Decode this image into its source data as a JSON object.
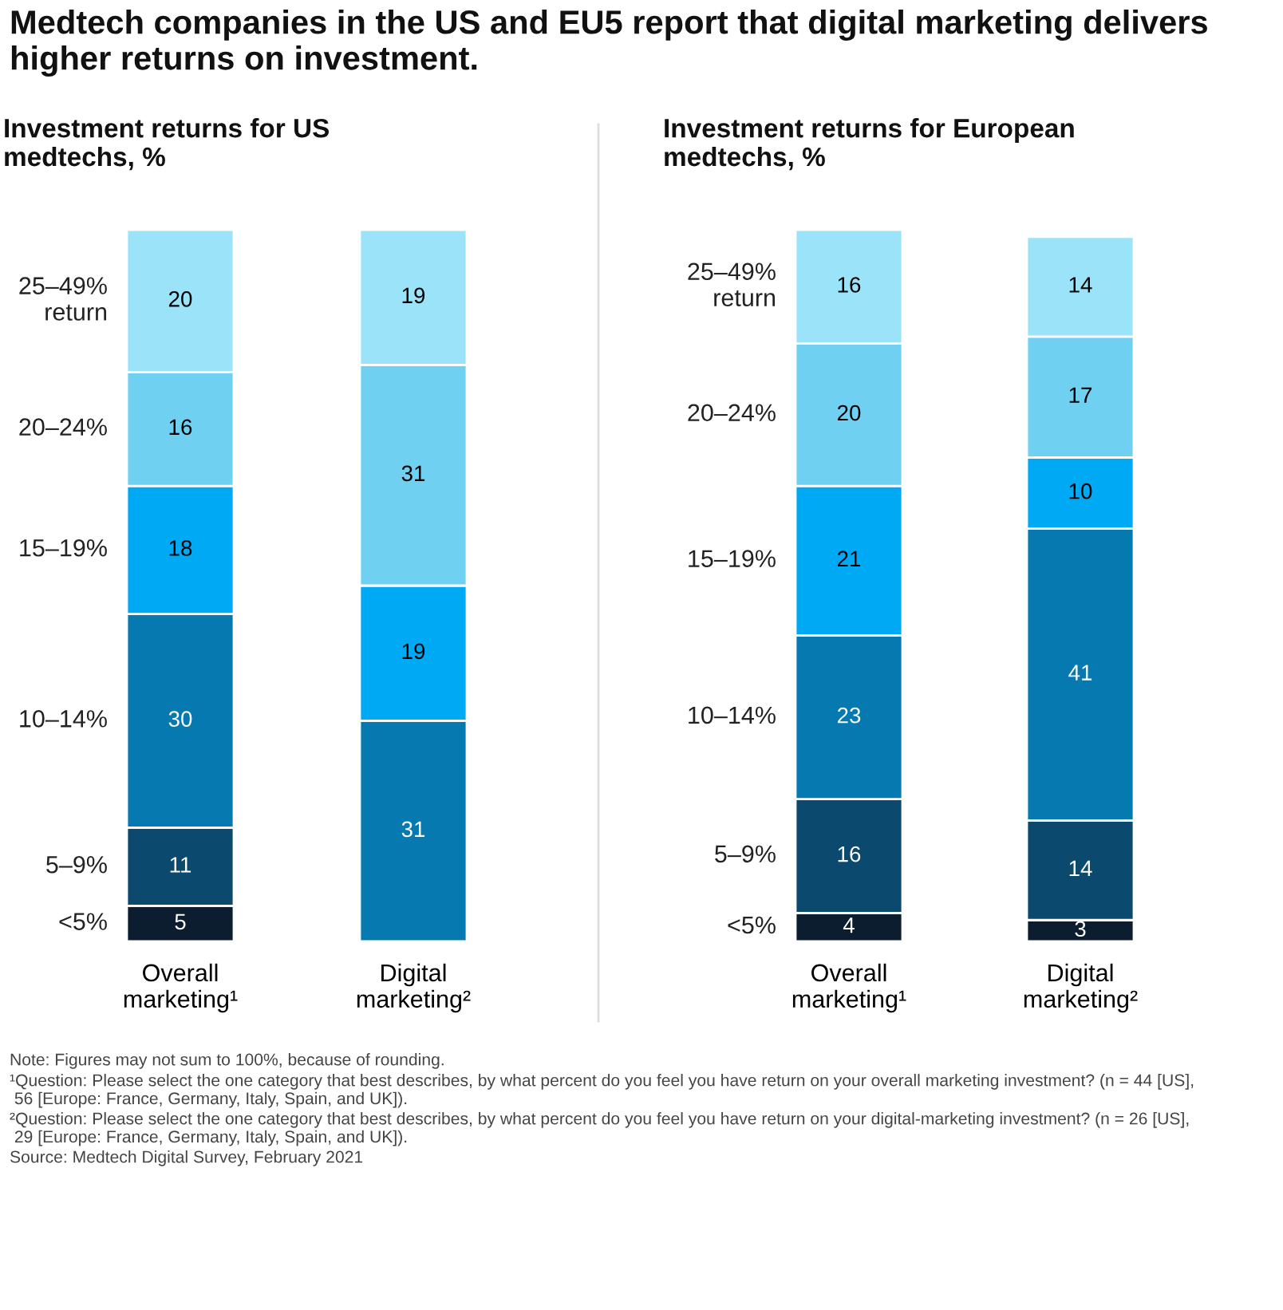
{
  "chart_data": [
    {
      "type": "bar",
      "stacked": true,
      "title": "Medtech companies in the US and EU5 report that digital marketing delivers\nhigher returns on investment.",
      "subtitle": "Investment returns for US\nmedtechs, %",
      "categories": [
        "Overall\nmarketing¹",
        "Digital\nmarketing²"
      ],
      "ylim": [
        0,
        100
      ],
      "tick_labels": "x",
      "grid": false,
      "legend": false,
      "series": [
        {
          "name": "<5%",
          "color": "#0b1d2e",
          "values": [
            5,
            0
          ],
          "value_labels": [
            "5",
            null
          ]
        },
        {
          "name": "5–9%",
          "color": "#0b4a6e",
          "values": [
            11,
            0
          ],
          "value_labels": [
            "11",
            null
          ]
        },
        {
          "name": "10–14%",
          "color": "#0679b0",
          "values": [
            30,
            31
          ],
          "value_labels": [
            "30",
            "31"
          ]
        },
        {
          "name": "15–19%",
          "color": "#00a9f4",
          "values": [
            18,
            19
          ],
          "value_labels": [
            "18",
            "19"
          ]
        },
        {
          "name": "20–24%",
          "color": "#6fd0f2",
          "values": [
            16,
            31
          ],
          "value_labels": [
            "16",
            "31"
          ]
        },
        {
          "name": "25–49%\nreturn",
          "color": "#9ae3f8",
          "values": [
            20,
            19
          ],
          "value_labels": [
            "20",
            "19"
          ]
        }
      ],
      "annotations": [
        "Note: Figures may not sum to 100%, because of rounding.",
        "¹Question: Please select the one category that best describes, by what percent do you feel you have return on your overall marketing investment? (n = 44 [US],\n 56 [Europe: France, Germany, Italy, Spain, and UK]).",
        "²Question: Please select the one category that best describes, by what percent do you feel you have return on your digital-marketing investment? (n = 26 [US],\n 29 [Europe: France, Germany, Italy, Spain, and UK]).",
        "Source: Medtech Digital Survey, February 2021"
      ]
    },
    {
      "type": "bar",
      "stacked": true,
      "subtitle": "Investment returns for European\nmedtechs, %",
      "categories": [
        "Overall\nmarketing¹",
        "Digital\nmarketing²"
      ],
      "ylim": [
        0,
        100
      ],
      "tick_labels": "x",
      "grid": false,
      "legend": false,
      "series": [
        {
          "name": "<5%",
          "color": "#0b1d2e",
          "values": [
            4,
            3
          ],
          "value_labels": [
            "4",
            "3"
          ]
        },
        {
          "name": "5–9%",
          "color": "#0b4a6e",
          "values": [
            16,
            14
          ],
          "value_labels": [
            "16",
            "14"
          ]
        },
        {
          "name": "10–14%",
          "color": "#0679b0",
          "values": [
            23,
            41
          ],
          "value_labels": [
            "23",
            "41"
          ]
        },
        {
          "name": "15–19%",
          "color": "#00a9f4",
          "values": [
            21,
            10
          ],
          "value_labels": [
            "21",
            "10"
          ]
        },
        {
          "name": "20–24%",
          "color": "#6fd0f2",
          "values": [
            20,
            17
          ],
          "value_labels": [
            "20",
            "17"
          ]
        },
        {
          "name": "25–49%\nreturn",
          "color": "#9ae3f8",
          "values": [
            16,
            14
          ],
          "value_labels": [
            "16",
            "14"
          ]
        }
      ]
    }
  ]
}
